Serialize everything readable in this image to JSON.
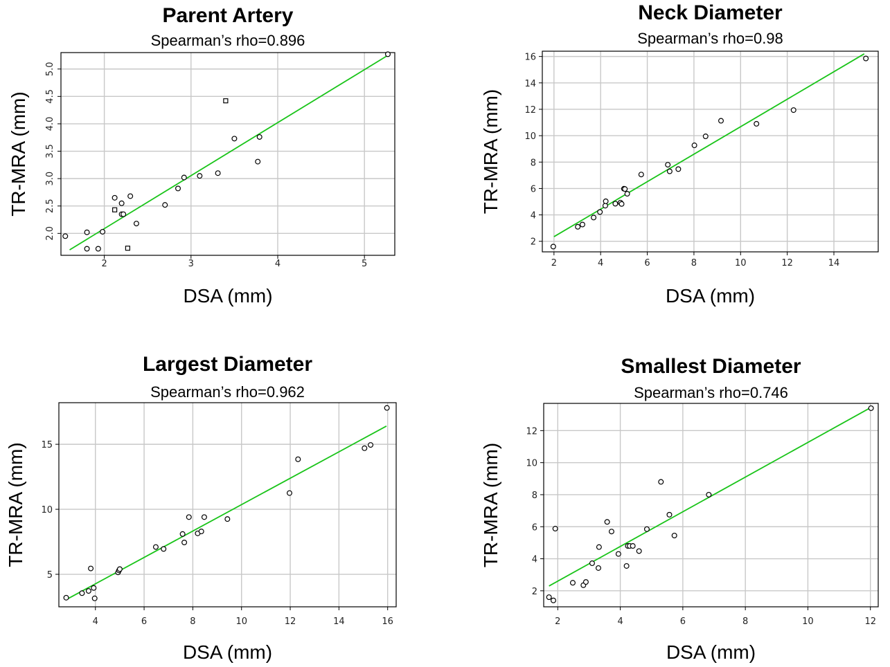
{
  "chart_data": [
    {
      "type": "scatter",
      "title": "Parent Artery",
      "subtitle": "Spearman’s rho=0.896",
      "xlabel": "DSA (mm)",
      "ylabel": "TR-MRA (mm)",
      "xlim": [
        1.5,
        5.35
      ],
      "ylim": [
        1.6,
        5.3
      ],
      "xticks": [
        2,
        3,
        4,
        5
      ],
      "yticks": [
        2.0,
        2.5,
        3.0,
        3.5,
        4.0,
        4.5,
        5.0
      ],
      "ytick_labels": [
        "2.0",
        "2.5",
        "3.0",
        "3.5",
        "4.0",
        "4.5",
        "5.0"
      ],
      "grid": true,
      "rotate_y_ticks": true,
      "x": [
        1.55,
        1.8,
        1.8,
        1.93,
        1.98,
        2.12,
        2.12,
        2.2,
        2.2,
        2.22,
        2.27,
        2.3,
        2.37,
        2.7,
        2.85,
        2.92,
        3.1,
        3.31,
        3.4,
        3.5,
        3.77,
        3.79,
        5.27
      ],
      "y": [
        1.95,
        2.02,
        1.72,
        1.72,
        2.03,
        2.43,
        2.65,
        2.55,
        2.35,
        2.35,
        1.73,
        2.68,
        2.18,
        2.52,
        2.82,
        3.02,
        3.05,
        3.1,
        4.42,
        3.73,
        3.31,
        3.76,
        5.27
      ],
      "fit": {
        "x": [
          1.6,
          5.27
        ],
        "y": [
          1.7,
          5.25
        ]
      }
    },
    {
      "type": "scatter",
      "title": "Neck Diameter",
      "subtitle": "Spearman’s rho=0.98",
      "xlabel": "DSA (mm)",
      "ylabel": "TR-MRA (mm)",
      "xlim": [
        1.5,
        15.9
      ],
      "ylim": [
        1.2,
        16.4
      ],
      "xticks": [
        2,
        4,
        6,
        8,
        10,
        12,
        14
      ],
      "yticks": [
        2,
        4,
        6,
        8,
        10,
        12,
        14,
        16
      ],
      "ytick_labels": [
        "2",
        "4",
        "6",
        "8",
        "10",
        "12",
        "14",
        "16"
      ],
      "grid": true,
      "rotate_y_ticks": false,
      "x": [
        1.97,
        3.02,
        3.22,
        3.7,
        3.97,
        4.2,
        4.22,
        4.63,
        4.85,
        4.9,
        5.0,
        5.04,
        5.14,
        5.74,
        6.88,
        6.96,
        7.33,
        8.02,
        8.5,
        9.16,
        10.68,
        12.27,
        15.37
      ],
      "y": [
        1.6,
        3.1,
        3.27,
        3.8,
        4.22,
        4.7,
        5.03,
        4.85,
        4.93,
        4.83,
        5.98,
        5.96,
        5.6,
        7.06,
        7.8,
        7.3,
        7.47,
        9.27,
        9.95,
        11.13,
        10.9,
        11.94,
        15.85
      ],
      "fit": {
        "x": [
          2.0,
          15.3
        ],
        "y": [
          2.35,
          16.2
        ]
      }
    },
    {
      "type": "scatter",
      "title": "Largest Diameter",
      "subtitle": "Spearman’s rho=0.962",
      "xlabel": "DSA  (mm)",
      "ylabel": "TR-MRA (mm)",
      "xlim": [
        2.5,
        16.35
      ],
      "ylim": [
        2.5,
        18.2
      ],
      "xticks": [
        4,
        6,
        8,
        10,
        12,
        14,
        16
      ],
      "yticks": [
        5,
        10,
        15
      ],
      "ytick_labels": [
        "5",
        "10",
        "15"
      ],
      "grid": true,
      "rotate_y_ticks": false,
      "x": [
        2.8,
        3.45,
        3.72,
        3.81,
        3.93,
        3.97,
        4.93,
        4.97,
        5.0,
        6.48,
        6.8,
        7.58,
        7.65,
        7.84,
        8.2,
        8.35,
        8.47,
        9.42,
        11.97,
        12.32,
        15.05,
        15.3,
        15.97
      ],
      "y": [
        3.2,
        3.55,
        3.72,
        5.45,
        3.95,
        3.15,
        5.15,
        5.3,
        5.4,
        7.1,
        6.95,
        8.1,
        7.45,
        9.4,
        8.15,
        8.3,
        9.4,
        9.25,
        11.25,
        13.85,
        14.7,
        14.95,
        17.8
      ],
      "fit": {
        "x": [
          2.85,
          15.95
        ],
        "y": [
          3.1,
          16.4
        ]
      }
    },
    {
      "type": "scatter",
      "title": "Smallest Diameter",
      "subtitle": "Spearman’s rho=0.746",
      "xlabel": "DSA (mm)",
      "ylabel": "TR-MRA (mm)",
      "xlim": [
        1.55,
        12.25
      ],
      "ylim": [
        1.0,
        13.7
      ],
      "xticks": [
        2,
        4,
        6,
        8,
        10,
        12
      ],
      "yticks": [
        2,
        4,
        6,
        8,
        10,
        12
      ],
      "ytick_labels": [
        "2",
        "4",
        "6",
        "8",
        "10",
        "12"
      ],
      "grid": true,
      "rotate_y_ticks": false,
      "x": [
        1.72,
        1.86,
        1.92,
        2.48,
        2.82,
        2.9,
        3.1,
        3.3,
        3.32,
        3.58,
        3.72,
        3.94,
        4.2,
        4.24,
        4.3,
        4.4,
        4.6,
        4.85,
        5.3,
        5.57,
        5.73,
        6.83,
        12.02
      ],
      "y": [
        1.6,
        1.4,
        5.88,
        2.5,
        2.35,
        2.55,
        3.72,
        3.42,
        4.73,
        6.3,
        5.7,
        4.3,
        3.55,
        4.8,
        4.8,
        4.8,
        4.48,
        5.85,
        8.8,
        6.75,
        5.45,
        8.0,
        13.4
      ],
      "fit": {
        "x": [
          1.72,
          12.02
        ],
        "y": [
          2.3,
          13.45
        ]
      }
    }
  ]
}
